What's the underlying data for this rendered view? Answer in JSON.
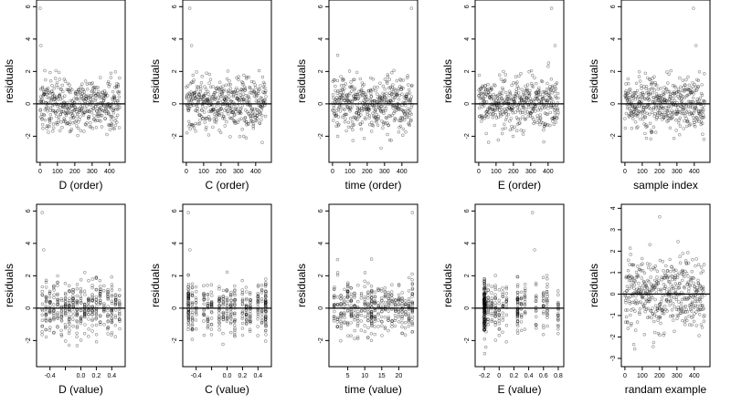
{
  "chart_data": [
    {
      "type": "scatter",
      "xlabel": "D (order)",
      "ylabel": "residuals",
      "xlim": [
        -10,
        480
      ],
      "ylim": [
        -3.5,
        6.3
      ],
      "xticks": [
        0,
        100,
        200,
        300,
        400
      ],
      "yticks": [
        -2,
        0,
        2,
        4,
        6
      ],
      "hline": 0,
      "x_pattern": "index",
      "n": 460,
      "outliers": [
        {
          "x": 0,
          "y": 5.9
        },
        {
          "x": 5,
          "y": 3.6
        }
      ]
    },
    {
      "type": "scatter",
      "xlabel": "C (order)",
      "ylabel": "residuals",
      "xlim": [
        -10,
        480
      ],
      "ylim": [
        -3.5,
        6.3
      ],
      "xticks": [
        0,
        100,
        200,
        300,
        400
      ],
      "yticks": [
        -2,
        0,
        2,
        4,
        6
      ],
      "hline": 0,
      "x_pattern": "index",
      "n": 460,
      "outliers": [
        {
          "x": 20,
          "y": 5.9
        },
        {
          "x": 30,
          "y": 3.6
        }
      ]
    },
    {
      "type": "scatter",
      "xlabel": "time (order)",
      "ylabel": "residuals",
      "xlim": [
        -10,
        480
      ],
      "ylim": [
        -3.5,
        6.3
      ],
      "xticks": [
        0,
        100,
        200,
        300,
        400
      ],
      "yticks": [
        -2,
        0,
        2,
        4,
        6
      ],
      "hline": 0,
      "x_pattern": "index",
      "n": 460,
      "outliers": [
        {
          "x": 455,
          "y": 5.9
        },
        {
          "x": 30,
          "y": 3.0
        }
      ]
    },
    {
      "type": "scatter",
      "xlabel": "E (order)",
      "ylabel": "residuals",
      "xlim": [
        -10,
        480
      ],
      "ylim": [
        -3.5,
        6.3
      ],
      "xticks": [
        0,
        100,
        200,
        300,
        400
      ],
      "yticks": [
        -2,
        0,
        2,
        4,
        6
      ],
      "hline": 0,
      "x_pattern": "index",
      "n": 460,
      "outliers": [
        {
          "x": 420,
          "y": 5.9
        },
        {
          "x": 440,
          "y": 3.6
        }
      ]
    },
    {
      "type": "scatter",
      "xlabel": "sample index",
      "ylabel": "residuals",
      "xlim": [
        -10,
        480
      ],
      "ylim": [
        -3.5,
        6.3
      ],
      "xticks": [
        0,
        100,
        200,
        300,
        400
      ],
      "yticks": [
        -2,
        0,
        2,
        4,
        6
      ],
      "hline": 0,
      "x_pattern": "index",
      "n": 460,
      "outliers": [
        {
          "x": 395,
          "y": 5.9
        },
        {
          "x": 410,
          "y": 3.6
        }
      ]
    },
    {
      "type": "scatter",
      "xlabel": "D (value)",
      "ylabel": "residuals",
      "xlim": [
        -0.55,
        0.55
      ],
      "ylim": [
        -3.5,
        6.3
      ],
      "xticks": [
        -0.4,
        -0.2,
        0.0,
        0.2,
        0.4
      ],
      "xticklabels": [
        "-0.4",
        "",
        "0.0",
        "0.2",
        "0.4"
      ],
      "yticks": [
        -2,
        0,
        2,
        4,
        6
      ],
      "hline": 0,
      "x_pattern": "grid",
      "x_values": [
        -0.5,
        -0.45,
        -0.4,
        -0.35,
        -0.3,
        -0.25,
        -0.2,
        -0.15,
        -0.1,
        -0.05,
        0.0,
        0.05,
        0.1,
        0.15,
        0.2,
        0.25,
        0.3,
        0.35,
        0.4,
        0.45,
        0.5
      ],
      "n": 420,
      "outliers": [
        {
          "x": -0.5,
          "y": 5.9
        },
        {
          "x": -0.48,
          "y": 3.6
        }
      ]
    },
    {
      "type": "scatter",
      "xlabel": "C (value)",
      "ylabel": "residuals",
      "xlim": [
        -0.55,
        0.55
      ],
      "ylim": [
        -3.5,
        6.3
      ],
      "xticks": [
        -0.4,
        -0.2,
        0.0,
        0.2,
        0.4
      ],
      "xticklabels": [
        "-0.4",
        "",
        "0.0",
        "0.2",
        "0.4"
      ],
      "yticks": [
        -2,
        0,
        2,
        4,
        6
      ],
      "hline": 0,
      "x_pattern": "grid",
      "x_values": [
        -0.5,
        -0.45,
        -0.4,
        -0.3,
        -0.25,
        -0.2,
        -0.1,
        -0.05,
        0.0,
        0.05,
        0.1,
        0.2,
        0.25,
        0.3,
        0.4,
        0.45,
        0.5,
        0.5,
        0.5,
        -0.5,
        -0.5
      ],
      "n": 420,
      "outliers": [
        {
          "x": -0.5,
          "y": 5.9
        },
        {
          "x": -0.48,
          "y": 3.6
        }
      ]
    },
    {
      "type": "scatter",
      "xlabel": "time (value)",
      "ylabel": "residuals",
      "xlim": [
        0,
        25
      ],
      "ylim": [
        -3.5,
        6.3
      ],
      "xticks": [
        5,
        10,
        15,
        20
      ],
      "yticks": [
        -2,
        0,
        2,
        4,
        6
      ],
      "hline": 0,
      "x_pattern": "grid",
      "x_values": [
        1,
        2,
        3,
        4,
        5,
        6,
        7,
        8,
        9,
        10,
        11,
        12,
        12,
        12,
        13,
        14,
        15,
        16,
        17,
        18,
        19,
        20,
        21,
        22,
        23,
        24,
        24
      ],
      "n": 420,
      "outliers": [
        {
          "x": 24,
          "y": 5.9
        },
        {
          "x": 2,
          "y": 3.0
        }
      ]
    },
    {
      "type": "scatter",
      "xlabel": "E (value)",
      "ylabel": "residuals",
      "xlim": [
        -0.3,
        0.85
      ],
      "ylim": [
        -3.5,
        6.3
      ],
      "xticks": [
        -0.2,
        0.0,
        0.2,
        0.4,
        0.6,
        0.8
      ],
      "yticks": [
        -2,
        0,
        2,
        4,
        6
      ],
      "hline": 0,
      "x_pattern": "grid",
      "x_values": [
        -0.2,
        -0.2,
        -0.2,
        -0.2,
        -0.2,
        -0.2,
        -0.2,
        -0.19,
        -0.18,
        -0.15,
        -0.1,
        -0.05,
        0.0,
        0.05,
        0.1,
        0.25,
        0.25,
        0.25,
        0.3,
        0.35,
        0.5,
        0.6,
        0.65,
        0.8
      ],
      "n": 420,
      "outliers": [
        {
          "x": 0.45,
          "y": 5.9
        },
        {
          "x": 0.48,
          "y": 3.6
        }
      ]
    },
    {
      "type": "scatter",
      "xlabel": "randam example",
      "ylabel": "residuals",
      "xlim": [
        -10,
        480
      ],
      "ylim": [
        -3.3,
        4.1
      ],
      "xticks": [
        0,
        100,
        200,
        300,
        400
      ],
      "yticks": [
        -3,
        -2,
        -1,
        0,
        1,
        2,
        3,
        4
      ],
      "hline": 0,
      "x_pattern": "index",
      "n": 460,
      "outliers": [
        {
          "x": 200,
          "y": 3.6
        }
      ]
    }
  ]
}
